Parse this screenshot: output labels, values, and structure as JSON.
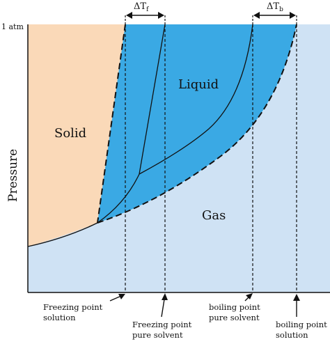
{
  "diagram": {
    "y_axis_label": "Pressure",
    "pressure_tick": "1 atm",
    "regions": {
      "solid": "Solid",
      "liquid": "Liquid",
      "gas": "Gas"
    },
    "deltas": {
      "freezing": {
        "symbol": "ΔT",
        "subscript": "f"
      },
      "boiling": {
        "symbol": "ΔT",
        "subscript": "b"
      }
    },
    "bottom_labels": {
      "freezing_solution": [
        "Freezing point",
        "solution"
      ],
      "freezing_pure": [
        "Freezing point",
        "pure solvent"
      ],
      "boiling_pure": [
        "boiling point",
        "pure solvent"
      ],
      "boiling_solution": [
        "boiling point",
        "solution"
      ]
    },
    "colors": {
      "solid_fill": "#fad9b8",
      "liquid_fill": "#3aa9e4",
      "gas_fill": "#cfe2f4",
      "line": "#111111"
    }
  }
}
